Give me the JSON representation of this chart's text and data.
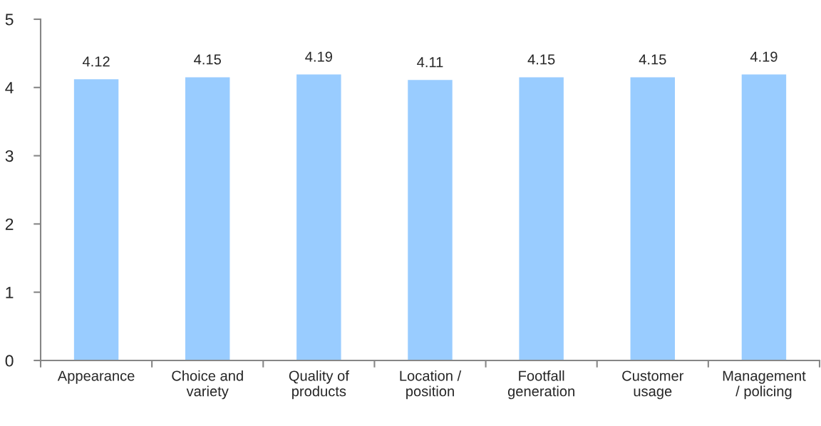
{
  "chart_data": {
    "type": "bar",
    "categories": [
      "Appearance",
      "Choice and\nvariety",
      "Quality of\nproducts",
      "Location /\nposition",
      "Footfall\ngeneration",
      "Customer\nusage",
      "Management\n/ policing"
    ],
    "values": [
      4.12,
      4.15,
      4.19,
      4.11,
      4.15,
      4.15,
      4.19
    ],
    "color": "#99ccff",
    "ylim": [
      0,
      5
    ],
    "yticks": [
      0,
      1,
      2,
      3,
      4,
      5
    ],
    "data_labels": true
  }
}
